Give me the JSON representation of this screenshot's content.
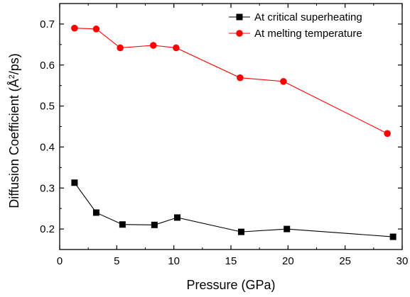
{
  "chart_data": {
    "type": "line",
    "title": "",
    "xlabel": "Pressure (GPa)",
    "ylabel_parts": {
      "before": "Diffusion Coefficient (Å",
      "sup": "2",
      "after": "/ps)"
    },
    "xlim": [
      0,
      30
    ],
    "ylim": [
      0.15,
      0.75
    ],
    "xticks": [
      0,
      5,
      10,
      15,
      20,
      25,
      30
    ],
    "yticks": [
      0.2,
      0.3,
      0.4,
      0.5,
      0.6,
      0.7
    ],
    "xtick_labels": [
      "0",
      "5",
      "10",
      "15",
      "20",
      "25",
      "30"
    ],
    "ytick_labels": [
      "0.2",
      "0.3",
      "0.4",
      "0.5",
      "0.6",
      "0.7"
    ],
    "grid": false,
    "legend_position": "top-right",
    "series": [
      {
        "name": "At critical superheating",
        "color": "#000000",
        "marker": "square",
        "x": [
          1.3,
          3.2,
          5.5,
          8.3,
          10.3,
          15.9,
          19.9,
          29.2
        ],
        "y": [
          0.313,
          0.24,
          0.211,
          0.21,
          0.228,
          0.193,
          0.2,
          0.181
        ]
      },
      {
        "name": "At melting temperature",
        "color": "#ff0000",
        "marker": "circle",
        "x": [
          1.3,
          3.2,
          5.3,
          8.2,
          10.2,
          15.8,
          19.6,
          28.7
        ],
        "y": [
          0.69,
          0.688,
          0.642,
          0.648,
          0.642,
          0.569,
          0.56,
          0.433
        ]
      }
    ]
  }
}
